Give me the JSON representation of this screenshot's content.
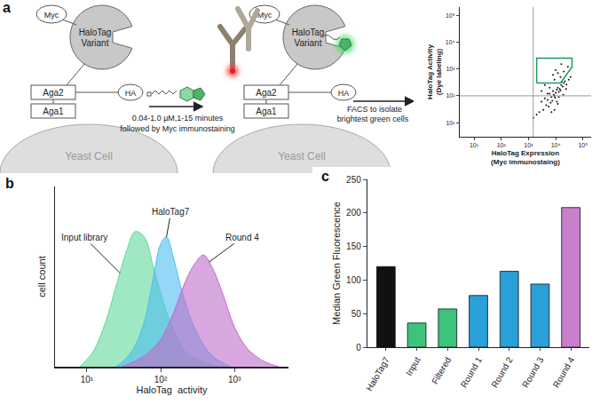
{
  "panel_labels": [
    "a",
    "b",
    "c"
  ],
  "diagram": {
    "labels": {
      "myc": "Myc",
      "halotag": [
        "HaloTag",
        "Variant"
      ],
      "aga2": "Aga2",
      "aga1": "Aga1",
      "ha": "HA",
      "cell": "Yeast Cell"
    },
    "step1": [
      "0.04-1.0 µM,1-15 minutes",
      "followed by Myc immunostaining"
    ],
    "step2": [
      "FACS to isolate",
      "brightest green cells"
    ]
  },
  "chart_data": [
    {
      "type": "scatter",
      "x_label": [
        "HaloTag Expression",
        "(Myc immunostaing)"
      ],
      "y_label": [
        "HaloTag Activity",
        "(Dye labeling)"
      ],
      "log": true,
      "xlim": [
        3,
        200000
      ],
      "ylim": [
        3,
        200000
      ],
      "xticks": [
        {
          "value": 10,
          "label": "10¹"
        },
        {
          "value": 100,
          "label": "10²"
        },
        {
          "value": 1000,
          "label": "10³"
        },
        {
          "value": 10000,
          "label": "10⁴"
        },
        {
          "value": 100000,
          "label": "10⁵"
        }
      ],
      "yticks": [
        {
          "value": 10,
          "label": "10¹"
        },
        {
          "value": 100,
          "label": "10²"
        },
        {
          "value": 1000,
          "label": "10³"
        },
        {
          "value": 10000,
          "label": "10⁴"
        },
        {
          "value": 100000,
          "label": "10⁵"
        }
      ],
      "x": [
        3000,
        4000,
        5000,
        6000,
        7000,
        8000,
        9000,
        10000,
        12000,
        14000,
        16000,
        18000,
        20000,
        25000,
        30000,
        5500,
        6500,
        7500,
        8500,
        9500,
        11000,
        13000,
        15000,
        17000,
        22000,
        4500,
        3500,
        2500,
        2000,
        1500,
        8000,
        10000,
        12000,
        9000,
        7000,
        6000,
        15000,
        20000,
        28000,
        35000,
        11000,
        13000,
        5000,
        4000,
        16000,
        19000,
        24000,
        3000,
        9000,
        12000
      ],
      "y": [
        60,
        80,
        70,
        120,
        90,
        150,
        100,
        130,
        200,
        180,
        250,
        220,
        300,
        260,
        400,
        40,
        55,
        65,
        110,
        85,
        170,
        140,
        160,
        330,
        350,
        45,
        30,
        25,
        20,
        15,
        600,
        900,
        700,
        30,
        25,
        200,
        500,
        800,
        1200,
        500,
        60,
        90,
        120,
        250,
        1500,
        110,
        180,
        150,
        400,
        50
      ],
      "color": "#111111",
      "marker": "dot",
      "gate": {
        "x": [
          2000,
          2000,
          40000,
          40000,
          15000,
          2000
        ],
        "y": [
          300,
          2500,
          2500,
          1200,
          300,
          300
        ],
        "color": "#1a9c5b"
      },
      "quadrant": {
        "x": 1500,
        "y": 100
      }
    },
    {
      "type": "area",
      "x_label": "HaloTag  activity",
      "y_label": "cell count",
      "log": "x",
      "tick_labels": "x",
      "xlim": [
        3.7,
        5400
      ],
      "ylim": [
        0,
        100
      ],
      "xticks": [
        {
          "value": 10,
          "label": "10¹"
        },
        {
          "value": 100,
          "label": "10²"
        },
        {
          "value": 1000,
          "label": "10³"
        }
      ],
      "series": [
        {
          "name": "Input library",
          "color": "#5fd99a",
          "x": [
            8,
            12,
            18,
            25,
            35,
            45,
            60,
            80,
            110,
            150,
            220,
            350,
            600
          ],
          "values": [
            0,
            8,
            25,
            45,
            65,
            75,
            72,
            55,
            35,
            20,
            8,
            3,
            0
          ]
        },
        {
          "name": "HaloTag7",
          "color": "#4fbdf0",
          "x": [
            25,
            40,
            60,
            80,
            100,
            120,
            150,
            200,
            300,
            500,
            900
          ],
          "values": [
            0,
            8,
            25,
            50,
            68,
            72,
            60,
            40,
            20,
            6,
            0
          ]
        },
        {
          "name": "Round 4",
          "color": "#c06cc9",
          "x": [
            30,
            60,
            100,
            150,
            220,
            300,
            380,
            500,
            700,
            1000,
            1500,
            2500,
            4000
          ],
          "values": [
            0,
            6,
            15,
            30,
            48,
            58,
            62,
            55,
            40,
            22,
            10,
            3,
            0
          ]
        }
      ]
    },
    {
      "type": "bar",
      "y_label": "Median Green Fluorescence",
      "categories": [
        "HaloTag7",
        "Input",
        "Filtered",
        "Round 1",
        "Round 2",
        "Round 3",
        "Round 4"
      ],
      "values": [
        120,
        36,
        57,
        77,
        113,
        94,
        208
      ],
      "colors": [
        "#111111",
        "#3cc47c",
        "#3cc47c",
        "#2a9fd8",
        "#2a9fd8",
        "#2a9fd8",
        "#c880cc"
      ],
      "ylim": [
        0,
        250
      ],
      "yticks": [
        0,
        50,
        100,
        150,
        200,
        250
      ]
    }
  ]
}
